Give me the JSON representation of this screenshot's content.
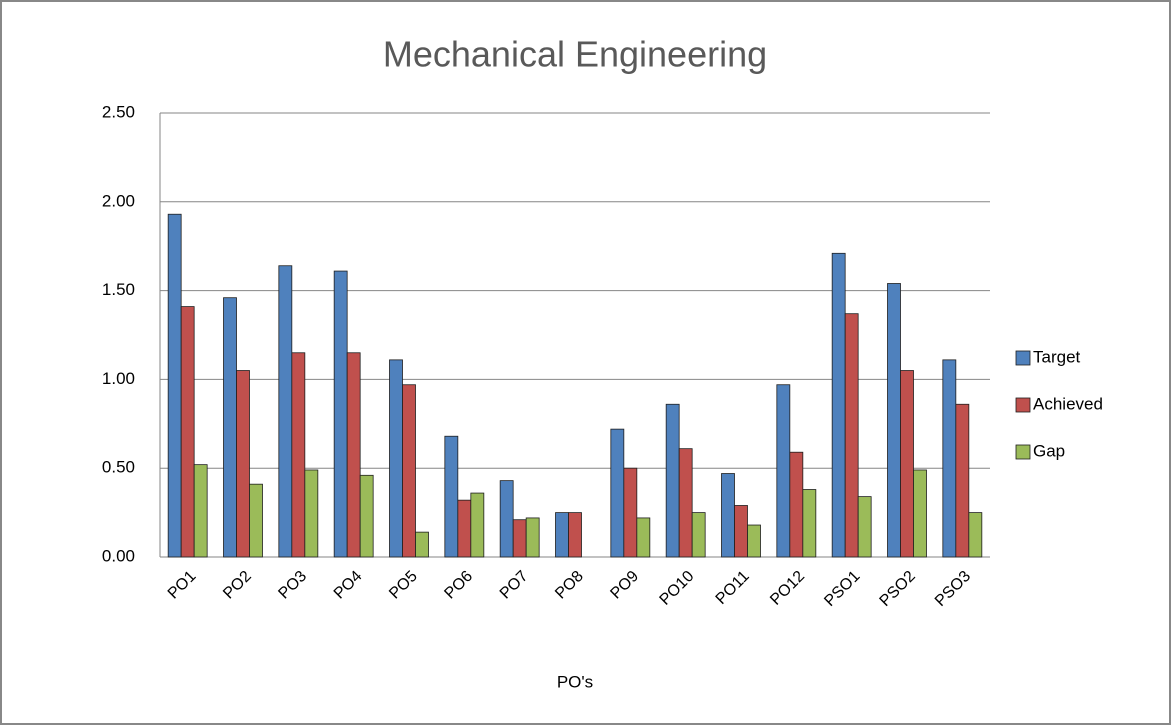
{
  "chart_data": {
    "type": "bar",
    "title": "Mechanical Engineering",
    "x_label": "PO's",
    "categories": [
      "PO1",
      "PO2",
      "PO3",
      "PO4",
      "PO5",
      "PO6",
      "PO7",
      "PO8",
      "PO9",
      "PO10",
      "PO11",
      "PO12",
      "PSO1",
      "PSO2",
      "PSO3"
    ],
    "series": [
      {
        "name": "Target",
        "color": "#4f81bd",
        "values": [
          1.93,
          1.46,
          1.64,
          1.61,
          1.11,
          0.68,
          0.43,
          0.25,
          0.72,
          0.86,
          0.47,
          0.97,
          1.71,
          1.54,
          1.11
        ]
      },
      {
        "name": "Achieved",
        "color": "#c0504d",
        "values": [
          1.41,
          1.05,
          1.15,
          1.15,
          0.97,
          0.32,
          0.21,
          0.25,
          0.5,
          0.61,
          0.29,
          0.59,
          1.37,
          1.05,
          0.86
        ]
      },
      {
        "name": "Gap",
        "color": "#9bbb59",
        "values": [
          0.52,
          0.41,
          0.49,
          0.46,
          0.14,
          0.36,
          0.22,
          0,
          0.22,
          0.25,
          0.18,
          0.38,
          0.34,
          0.49,
          0.25
        ]
      }
    ],
    "ylim": [
      0,
      2.5
    ],
    "yticks": [
      {
        "value": 0,
        "label": "0.00"
      },
      {
        "value": 0.5,
        "label": "0.50"
      },
      {
        "value": 1,
        "label": "1.00"
      },
      {
        "value": 1.5,
        "label": "1.50"
      },
      {
        "value": 2,
        "label": "2.00"
      },
      {
        "value": 2.5,
        "label": "2.50"
      }
    ],
    "grid": true,
    "legend": "right"
  }
}
